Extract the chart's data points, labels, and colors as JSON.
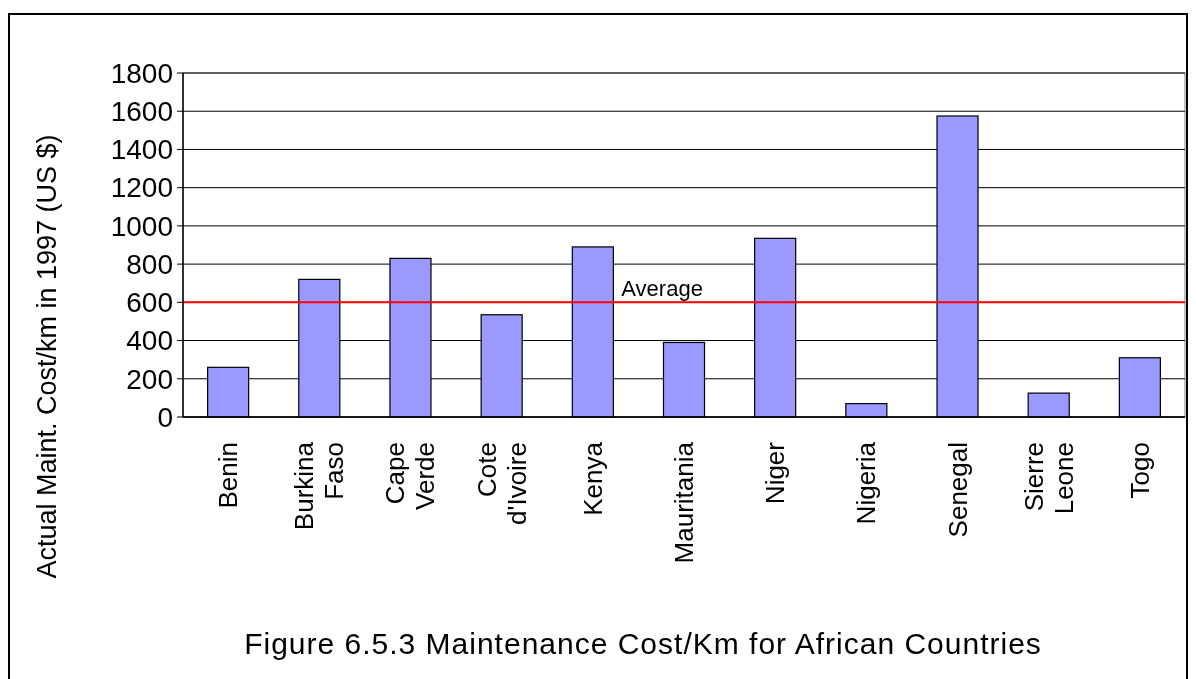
{
  "chart_data": {
    "type": "bar",
    "title": "Figure 6.5.3  Maintenance Cost/Km for African Countries",
    "ylabel": "Actual Maint. Cost/km in 1997 (US $)",
    "categories": [
      "Benin",
      "Burkina Faso",
      "Cape Verde",
      "Cote d'Ivoire",
      "Kenya",
      "Mauritania",
      "Niger",
      "Nigeria",
      "Senegal",
      "Sierre Leone",
      "Togo"
    ],
    "values": [
      260,
      720,
      830,
      535,
      890,
      390,
      935,
      70,
      1575,
      125,
      310
    ],
    "color": "#9999ff",
    "ylim": [
      0,
      1800
    ],
    "yticks": [
      0,
      200,
      400,
      600,
      800,
      1000,
      1200,
      1400,
      1600,
      1800
    ],
    "grid": "y",
    "ref_lines": [
      {
        "axis": "y",
        "value": 600,
        "label": "Average",
        "color": "#ff0000"
      }
    ]
  }
}
